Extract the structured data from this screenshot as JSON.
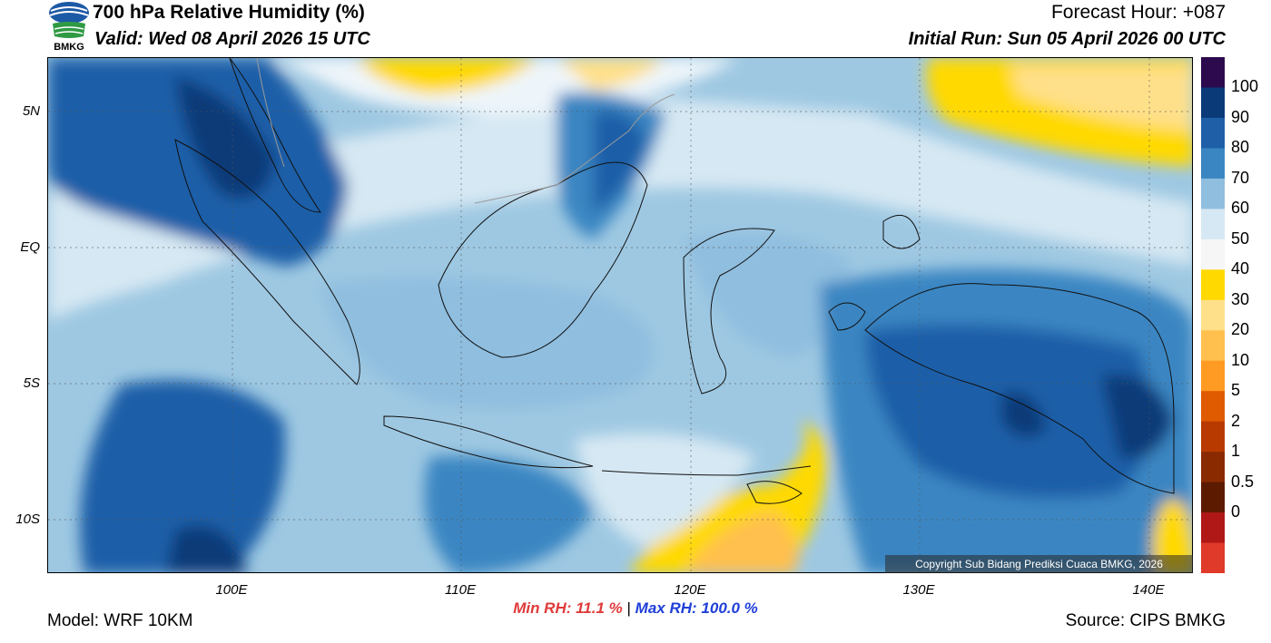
{
  "header": {
    "title": "700 hPa Relative Humidity (%)",
    "valid": "Valid: Wed 08 April 2026 15 UTC",
    "forecast_hour": "Forecast Hour: +087",
    "initial_run": "Initial Run: Sun 05 April 2026 00 UTC",
    "logo_text": "BMKG"
  },
  "map": {
    "lat_labels": [
      "5N",
      "EQ",
      "5S",
      "10S"
    ],
    "lon_labels": [
      "100E",
      "110E",
      "120E",
      "130E",
      "140E"
    ],
    "copyright": "Copyright Sub Bidang Prediksi Cuaca BMKG, 2026"
  },
  "colorbar": {
    "labels": [
      "100",
      "90",
      "80",
      "70",
      "60",
      "50",
      "40",
      "30",
      "20",
      "10",
      "5",
      "2",
      "1",
      "0.5",
      "0"
    ],
    "colors": [
      "#2d0a4e",
      "#0b3a78",
      "#1e5fa8",
      "#3a86c2",
      "#8fbedf",
      "#d6e8f3",
      "#f6f6f6",
      "#ffd900",
      "#ffe08a",
      "#ffc04d",
      "#ff9a22",
      "#e05a00",
      "#b83a00",
      "#8a2a00",
      "#5c1a00",
      "#b01818",
      "#e03a2a"
    ]
  },
  "stats": {
    "min": "Min RH:  11.1 %",
    "separator": "|",
    "max": "Max RH: 100.0 %"
  },
  "footer": {
    "model": "Model: WRF 10KM",
    "source": "Source: CIPS BMKG"
  }
}
